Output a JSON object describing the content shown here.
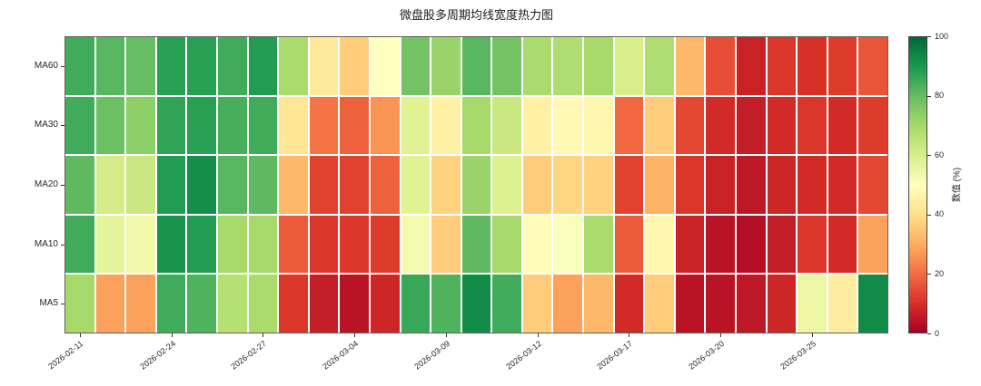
{
  "title": "微盘股多周期均线宽度热力图",
  "chart_data": {
    "type": "heatmap",
    "title": "微盘股多周期均线宽度热力图",
    "rows": [
      "MA60",
      "MA30",
      "MA20",
      "MA10",
      "MA5"
    ],
    "n_cols": 27,
    "x_tick_labels": [
      "2026-02-11",
      "2026-02-24",
      "2026-02-27",
      "2026-03-04",
      "2026-03-09",
      "2026-03-12",
      "2026-03-17",
      "2026-03-20",
      "2026-03-25"
    ],
    "x_tick_positions": [
      0,
      3,
      6,
      9,
      12,
      15,
      18,
      21,
      24
    ],
    "series": [
      {
        "name": "MA60",
        "values": [
          85,
          82,
          80,
          88,
          88,
          85,
          89,
          69,
          43,
          36,
          50,
          78,
          72,
          82,
          78,
          69,
          68,
          70,
          60,
          68,
          32,
          15,
          7,
          11,
          10,
          12,
          16
        ]
      },
      {
        "name": "MA30",
        "values": [
          85,
          79,
          74,
          87,
          88,
          84,
          85,
          42,
          21,
          18,
          26,
          58,
          45,
          70,
          63,
          45,
          48,
          47,
          19,
          36,
          14,
          9,
          6,
          9,
          11,
          9,
          12
        ]
      },
      {
        "name": "MA20",
        "values": [
          81,
          61,
          63,
          89,
          92,
          82,
          81,
          32,
          13,
          13,
          18,
          58,
          37,
          72,
          59,
          36,
          38,
          37,
          13,
          31,
          11,
          7,
          5,
          8,
          9,
          9,
          14
        ]
      },
      {
        "name": "MA10",
        "values": [
          85,
          57,
          54,
          91,
          89,
          70,
          70,
          17,
          11,
          11,
          12,
          53,
          36,
          81,
          70,
          49,
          51,
          69,
          17,
          47,
          7,
          4,
          3,
          6,
          11,
          9,
          28
        ]
      },
      {
        "name": "MA5",
        "values": [
          70,
          28,
          28,
          85,
          83,
          67,
          69,
          11,
          6,
          4,
          8,
          86,
          83,
          93,
          85,
          36,
          28,
          32,
          9,
          36,
          4,
          4,
          5,
          8,
          55,
          44,
          93
        ]
      }
    ],
    "value_range": [
      0,
      100
    ],
    "colormap": "RdYlGn",
    "grid_gap_color": "#ffffff",
    "colorbar": {
      "label": "数值 (%)",
      "ticks": [
        0,
        20,
        40,
        60,
        80,
        100
      ]
    }
  }
}
